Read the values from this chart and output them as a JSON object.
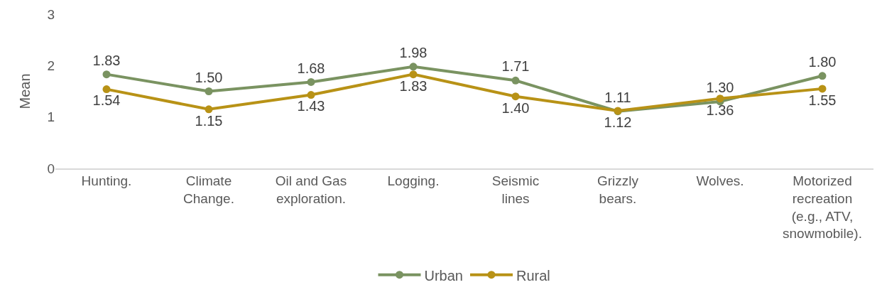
{
  "chart_data": {
    "type": "line",
    "categories": [
      "Hunting.",
      "Climate Change.",
      "Oil and Gas exploration.",
      "Logging.",
      "Seismic lines",
      "Grizzly bears.",
      "Wolves.",
      "Motorized recreation (e.g., ATV, snowmobile)."
    ],
    "series": [
      {
        "name": "Urban",
        "color": "#7a9361",
        "values": [
          1.83,
          1.5,
          1.68,
          1.98,
          1.71,
          1.11,
          1.3,
          1.8
        ],
        "value_labels": [
          "1.83",
          "1.50",
          "1.68",
          "1.98",
          "1.71",
          "1.11",
          "1.30",
          "1.80"
        ]
      },
      {
        "name": "Rural",
        "color": "#b89216",
        "values": [
          1.54,
          1.15,
          1.43,
          1.83,
          1.4,
          1.12,
          1.36,
          1.55
        ],
        "value_labels": [
          "1.54",
          "1.15",
          "1.43",
          "1.83",
          "1.40",
          "1.12",
          "1.36",
          "1.55"
        ]
      }
    ],
    "ylabel": "Mean",
    "ylim": [
      0,
      3
    ],
    "yticks": [
      0,
      1,
      2,
      3
    ],
    "grid": false,
    "legend": "bottom",
    "marker": "circle",
    "line_style": "solid"
  }
}
